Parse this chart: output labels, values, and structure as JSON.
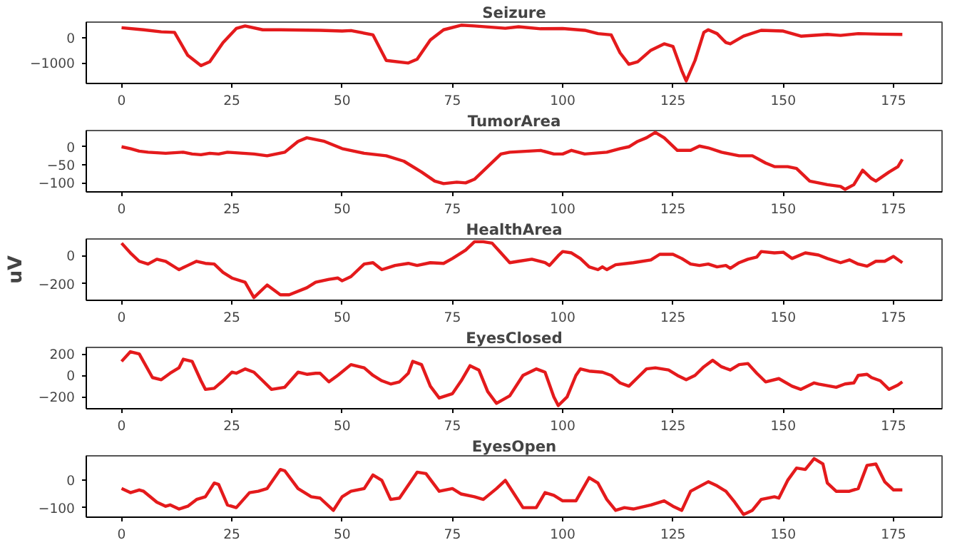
{
  "chart_data": [
    {
      "type": "line",
      "title": "Seizure",
      "xlim": [
        -8,
        186
      ],
      "xticks": [
        0,
        25,
        50,
        75,
        100,
        125,
        150,
        175
      ],
      "ylim": [
        -1800,
        600
      ],
      "yticks": [
        -1000,
        0
      ],
      "grid": false,
      "series": [
        {
          "color": "#e41a1c",
          "x": [
            0,
            5,
            9,
            12,
            15,
            18,
            20,
            23,
            26,
            28,
            32,
            36,
            45,
            50,
            52,
            57,
            60,
            65,
            67,
            70,
            73,
            77,
            80,
            87,
            90,
            95,
            100,
            105,
            108,
            111,
            113,
            115,
            117,
            120,
            123,
            125,
            127,
            128,
            130,
            132,
            133,
            135,
            137,
            138,
            141,
            145,
            150,
            152,
            154,
            160,
            163,
            167,
            172,
            177
          ],
          "values": [
            380,
            300,
            220,
            200,
            -700,
            -1100,
            -950,
            -200,
            350,
            450,
            300,
            300,
            280,
            250,
            270,
            100,
            -900,
            -1000,
            -850,
            -100,
            300,
            480,
            450,
            360,
            420,
            340,
            350,
            280,
            150,
            100,
            -600,
            -1050,
            -950,
            -500,
            -250,
            -350,
            -1300,
            -1700,
            -900,
            200,
            300,
            150,
            -200,
            -250,
            50,
            280,
            250,
            150,
            50,
            120,
            80,
            150,
            130,
            120
          ]
        }
      ]
    },
    {
      "type": "line",
      "title": "TumorArea",
      "xlim": [
        -8,
        186
      ],
      "xticks": [
        0,
        25,
        50,
        75,
        100,
        125,
        150,
        175
      ],
      "ylim": [
        -125,
        45
      ],
      "yticks": [
        -100,
        -50,
        0
      ],
      "grid": false,
      "series": [
        {
          "color": "#e41a1c",
          "x": [
            0,
            2,
            4,
            6,
            10,
            14,
            16,
            18,
            20,
            22,
            24,
            30,
            33,
            37,
            40,
            42,
            46,
            50,
            55,
            60,
            64,
            68,
            71,
            73,
            76,
            78,
            80,
            83,
            86,
            88,
            95,
            98,
            100,
            102,
            105,
            110,
            113,
            115,
            117,
            119,
            121,
            123,
            126,
            129,
            131,
            133,
            136,
            140,
            143,
            146,
            148,
            151,
            153,
            156,
            160,
            163,
            164,
            166,
            168,
            170,
            171,
            174,
            176,
            177
          ],
          "values": [
            0,
            -5,
            -12,
            -15,
            -18,
            -15,
            -20,
            -22,
            -18,
            -20,
            -15,
            -20,
            -25,
            -15,
            15,
            25,
            15,
            -5,
            -18,
            -25,
            -40,
            -70,
            -95,
            -102,
            -98,
            -100,
            -90,
            -55,
            -20,
            -15,
            -10,
            -20,
            -20,
            -10,
            -20,
            -15,
            -5,
            0,
            15,
            25,
            40,
            25,
            -10,
            -10,
            2,
            -3,
            -15,
            -25,
            -25,
            -45,
            -55,
            -55,
            -60,
            -95,
            -105,
            -110,
            -118,
            -105,
            -65,
            -88,
            -95,
            -70,
            -55,
            -35
          ]
        }
      ]
    },
    {
      "type": "line",
      "title": "HealthArea",
      "ylabel": "uV",
      "xlim": [
        -8,
        186
      ],
      "xticks": [
        0,
        25,
        50,
        75,
        100,
        125,
        150,
        175
      ],
      "ylim": [
        -320,
        120
      ],
      "yticks": [
        -200,
        0
      ],
      "grid": false,
      "series": [
        {
          "color": "#e41a1c",
          "x": [
            0,
            2,
            4,
            6,
            8,
            10,
            13,
            15,
            17,
            19,
            21,
            23,
            25,
            28,
            30,
            33,
            36,
            38,
            42,
            44,
            47,
            49,
            50,
            52,
            55,
            57,
            59,
            62,
            65,
            67,
            70,
            73,
            75,
            78,
            80,
            82,
            84,
            86,
            88,
            90,
            93,
            96,
            97,
            99,
            100,
            102,
            104,
            106,
            108,
            109,
            110,
            112,
            116,
            120,
            122,
            125,
            127,
            129,
            131,
            133,
            135,
            137,
            138,
            140,
            142,
            144,
            145,
            148,
            150,
            152,
            155,
            158,
            160,
            163,
            165,
            167,
            169,
            171,
            173,
            175,
            177
          ],
          "values": [
            90,
            20,
            -40,
            -60,
            -25,
            -40,
            -100,
            -70,
            -40,
            -55,
            -60,
            -120,
            -160,
            -190,
            -300,
            -210,
            -280,
            -280,
            -230,
            -190,
            -170,
            -160,
            -180,
            -150,
            -60,
            -50,
            -100,
            -70,
            -55,
            -70,
            -50,
            -55,
            -20,
            40,
            100,
            100,
            90,
            20,
            -50,
            -40,
            -25,
            -50,
            -70,
            0,
            30,
            20,
            -20,
            -80,
            -100,
            -80,
            -100,
            -65,
            -50,
            -30,
            10,
            10,
            -20,
            -60,
            -70,
            -60,
            -80,
            -70,
            -90,
            -50,
            -25,
            -10,
            30,
            20,
            25,
            -20,
            20,
            5,
            -20,
            -50,
            -30,
            -60,
            -75,
            -40,
            -40,
            -5,
            -50
          ]
        }
      ]
    },
    {
      "type": "line",
      "title": "EyesClosed",
      "xlim": [
        -8,
        186
      ],
      "xticks": [
        0,
        25,
        50,
        75,
        100,
        125,
        150,
        175
      ],
      "ylim": [
        -310,
        260
      ],
      "yticks": [
        -200,
        0,
        200
      ],
      "grid": false,
      "series": [
        {
          "color": "#e41a1c",
          "x": [
            0,
            2,
            4,
            7,
            9,
            11,
            13,
            14,
            16,
            18,
            19,
            21,
            23,
            25,
            26,
            28,
            30,
            32,
            34,
            37,
            40,
            42,
            44,
            45,
            47,
            49,
            52,
            55,
            57,
            59,
            61,
            63,
            65,
            66,
            68,
            70,
            72,
            75,
            77,
            79,
            81,
            83,
            85,
            88,
            91,
            94,
            96,
            98,
            99,
            101,
            103,
            104,
            106,
            109,
            111,
            113,
            115,
            117,
            119,
            121,
            124,
            126,
            128,
            130,
            132,
            134,
            136,
            138,
            140,
            142,
            144,
            146,
            149,
            152,
            154,
            157,
            158,
            162,
            164,
            166,
            167,
            169,
            170,
            172,
            174,
            176,
            177
          ],
          "values": [
            130,
            220,
            200,
            -20,
            -40,
            20,
            70,
            150,
            130,
            -50,
            -130,
            -120,
            -50,
            30,
            20,
            60,
            30,
            -50,
            -130,
            -110,
            30,
            10,
            20,
            20,
            -60,
            0,
            100,
            70,
            0,
            -50,
            -80,
            -60,
            20,
            130,
            100,
            -100,
            -210,
            -170,
            -50,
            90,
            50,
            -150,
            -260,
            -190,
            0,
            60,
            30,
            -200,
            -280,
            -200,
            0,
            60,
            40,
            30,
            0,
            -70,
            -100,
            -20,
            60,
            70,
            50,
            0,
            -40,
            0,
            80,
            140,
            80,
            50,
            100,
            110,
            20,
            -60,
            -30,
            -100,
            -130,
            -70,
            -80,
            -110,
            -80,
            -70,
            0,
            10,
            -20,
            -50,
            -130,
            -90,
            -60
          ]
        }
      ]
    },
    {
      "type": "line",
      "title": "EyesOpen",
      "xlim": [
        -8,
        186
      ],
      "xticks": [
        0,
        25,
        50,
        75,
        100,
        125,
        150,
        175
      ],
      "ylim": [
        -135,
        90
      ],
      "yticks": [
        -100,
        0
      ],
      "grid": false,
      "series": [
        {
          "color": "#e41a1c",
          "x": [
            0,
            2,
            4,
            5,
            8,
            10,
            11,
            13,
            15,
            17,
            19,
            21,
            22,
            24,
            26,
            29,
            31,
            33,
            36,
            37,
            40,
            43,
            45,
            48,
            50,
            52,
            55,
            57,
            59,
            61,
            63,
            67,
            69,
            72,
            75,
            77,
            80,
            82,
            85,
            87,
            89,
            91,
            94,
            96,
            98,
            100,
            103,
            106,
            108,
            110,
            112,
            114,
            116,
            120,
            123,
            125,
            127,
            129,
            133,
            135,
            137,
            139,
            141,
            143,
            145,
            148,
            149,
            151,
            153,
            155,
            157,
            159,
            160,
            162,
            165,
            167,
            169,
            171,
            173,
            175,
            177
          ],
          "values": [
            -30,
            -45,
            -35,
            -40,
            -80,
            -95,
            -90,
            -105,
            -95,
            -70,
            -60,
            -10,
            -15,
            -90,
            -100,
            -45,
            -40,
            -30,
            40,
            35,
            -30,
            -60,
            -65,
            -110,
            -60,
            -40,
            -30,
            20,
            0,
            -70,
            -65,
            30,
            25,
            -40,
            -30,
            -50,
            -60,
            -70,
            -30,
            0,
            -50,
            -100,
            -100,
            -45,
            -55,
            -75,
            -75,
            10,
            -10,
            -70,
            -110,
            -100,
            -105,
            -90,
            -75,
            -95,
            -110,
            -40,
            -5,
            -20,
            -40,
            -80,
            -125,
            -110,
            -70,
            -60,
            -65,
            0,
            45,
            40,
            80,
            60,
            -10,
            -40,
            -40,
            -30,
            55,
            60,
            -5,
            -35,
            -35
          ]
        }
      ]
    }
  ]
}
